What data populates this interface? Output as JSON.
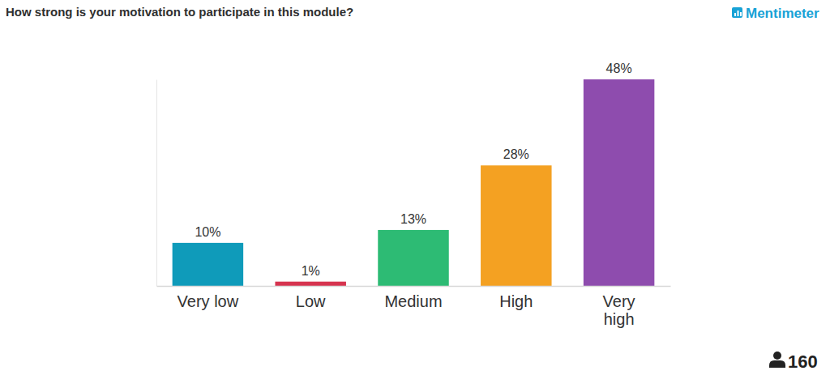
{
  "chart_data": {
    "type": "bar",
    "title": "How strong is your motivation to participate in this module?",
    "categories": [
      "Very low",
      "Low",
      "Medium",
      "High",
      "Very high"
    ],
    "values": [
      10,
      1,
      13,
      28,
      48
    ],
    "value_labels": [
      "10%",
      "1%",
      "13%",
      "28%",
      "48%"
    ],
    "colors": [
      "#0f9bba",
      "#d6344f",
      "#2dbb74",
      "#f4a122",
      "#8e4cae"
    ],
    "ylim": [
      0,
      48
    ],
    "grid": false,
    "data_labels": true,
    "tick_labels": "x",
    "brand": "Mentimeter",
    "participants": 160
  }
}
